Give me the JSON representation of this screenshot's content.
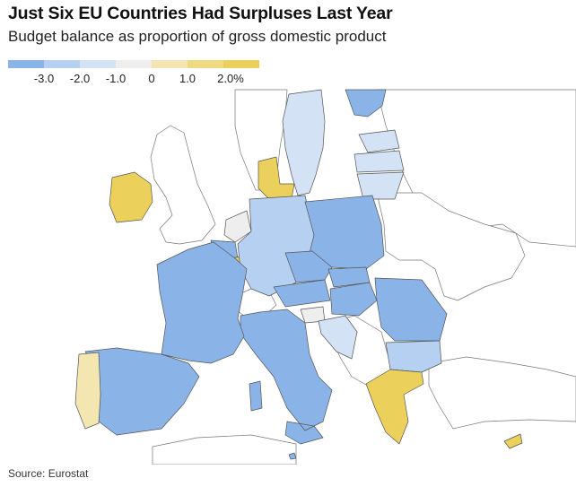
{
  "header": {
    "title": "Just Six EU Countries Had Surpluses Last Year",
    "subtitle": "Budget balance as proportion of gross domestic product"
  },
  "legend": {
    "swatches": [
      "#8ab4e8",
      "#b5d0f0",
      "#d3e2f5",
      "#eeeeee",
      "#f3e6b0",
      "#f0da80",
      "#ecd05c"
    ],
    "ticks": [
      "-3.0",
      "-2.0",
      "-1.0",
      "0",
      "1.0",
      "2.0%"
    ]
  },
  "colors": {
    "deficit_large": "#8ab4e8",
    "deficit_mid": "#b5d0f0",
    "deficit_small": "#d3e2f5",
    "neutral": "#eeeeee",
    "surplus_small": "#f3e6b0",
    "surplus_mid": "#f0da80",
    "surplus_large": "#ecd05c",
    "non_eu": "#ffffff",
    "border": "#555555"
  },
  "map": {
    "countries": [
      {
        "id": "sweden",
        "bin": "deficit_small"
      },
      {
        "id": "finland",
        "bin": "deficit_large"
      },
      {
        "id": "estonia",
        "bin": "deficit_small"
      },
      {
        "id": "latvia",
        "bin": "deficit_small"
      },
      {
        "id": "lithuania",
        "bin": "deficit_small"
      },
      {
        "id": "denmark",
        "bin": "surplus_large"
      },
      {
        "id": "ireland",
        "bin": "surplus_large"
      },
      {
        "id": "netherlands",
        "bin": "neutral"
      },
      {
        "id": "belgium",
        "bin": "deficit_large"
      },
      {
        "id": "luxembourg",
        "bin": "surplus_large"
      },
      {
        "id": "germany",
        "bin": "deficit_mid"
      },
      {
        "id": "poland",
        "bin": "deficit_large"
      },
      {
        "id": "czechia",
        "bin": "deficit_large"
      },
      {
        "id": "slovakia",
        "bin": "deficit_large"
      },
      {
        "id": "austria",
        "bin": "deficit_large"
      },
      {
        "id": "hungary",
        "bin": "deficit_large"
      },
      {
        "id": "slovenia",
        "bin": "neutral"
      },
      {
        "id": "croatia",
        "bin": "deficit_small"
      },
      {
        "id": "romania",
        "bin": "deficit_large"
      },
      {
        "id": "bulgaria",
        "bin": "deficit_mid"
      },
      {
        "id": "greece",
        "bin": "surplus_large"
      },
      {
        "id": "cyprus",
        "bin": "surplus_large"
      },
      {
        "id": "malta",
        "bin": "deficit_large"
      },
      {
        "id": "italy",
        "bin": "deficit_large"
      },
      {
        "id": "france",
        "bin": "deficit_large"
      },
      {
        "id": "spain",
        "bin": "deficit_large"
      },
      {
        "id": "portugal",
        "bin": "surplus_small"
      }
    ]
  },
  "footer": {
    "source": "Source: Eurostat"
  }
}
